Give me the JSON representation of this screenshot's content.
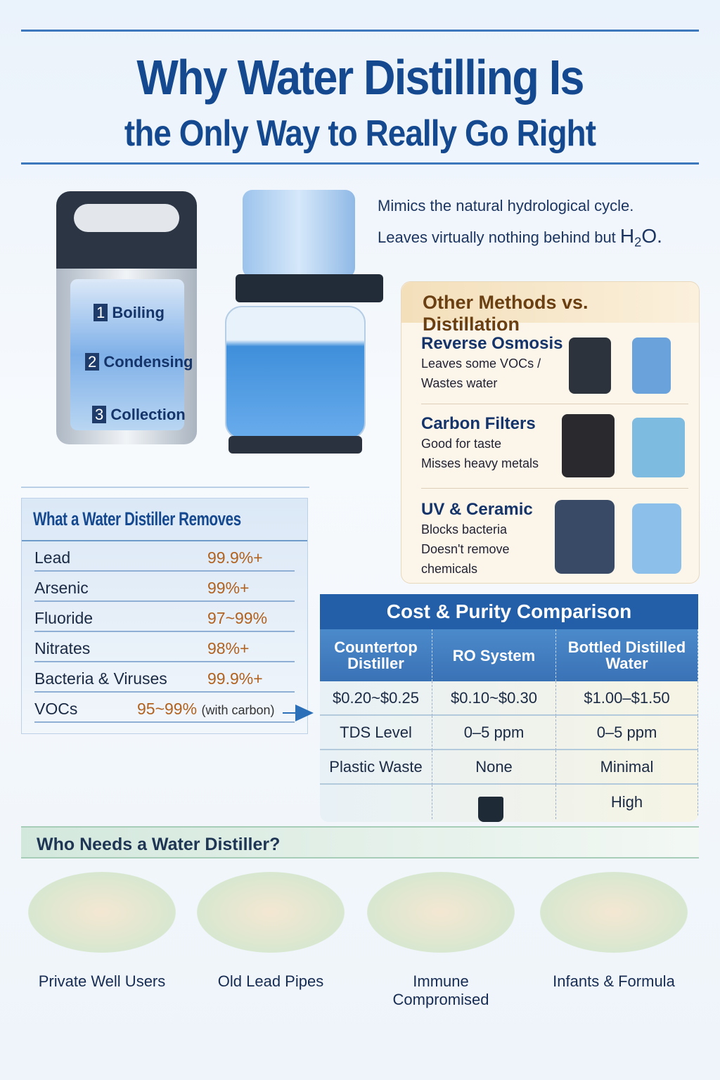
{
  "title": {
    "line1": "Why Water Distilling Is",
    "line2": "the Only Way to Really Go Right"
  },
  "intro": {
    "line1": "Mimics the natural hydrological cycle.",
    "line2_prefix": "Leaves virtually nothing behind but ",
    "formula": "H",
    "sub": "2",
    "formula_end": "O."
  },
  "distiller_steps": [
    {
      "num": "1",
      "label": "Boiling"
    },
    {
      "num": "2",
      "label": "Condensing"
    },
    {
      "num": "3",
      "label": "Collection"
    }
  ],
  "other_methods": {
    "title": "Other Methods vs. Distillation",
    "items": [
      {
        "name": "Reverse Osmosis",
        "lines": [
          "Leaves some VOCs /",
          "Wastes water"
        ]
      },
      {
        "name": "Carbon Filters",
        "lines": [
          "Good for taste",
          "Misses heavy metals"
        ]
      },
      {
        "name": "UV & Ceramic",
        "lines": [
          "Blocks bacteria",
          "Doesn't remove",
          "chemicals"
        ]
      }
    ]
  },
  "removes": {
    "title": "What a Water Distiller Removes",
    "rows": [
      {
        "name": "Lead",
        "value": "99.9%+",
        "note": ""
      },
      {
        "name": "Arsenic",
        "value": "99%+",
        "note": ""
      },
      {
        "name": "Fluoride",
        "value": "97~99%",
        "note": ""
      },
      {
        "name": "Nitrates",
        "value": "98%+",
        "note": ""
      },
      {
        "name": "Bacteria & Viruses",
        "value": "99.9%+",
        "note": ""
      },
      {
        "name": "VOCs",
        "value": "95~99%",
        "note": "(with carbon)"
      }
    ]
  },
  "cost": {
    "title": "Cost & Purity Comparison",
    "headers": [
      "Countertop Distiller",
      "RO System",
      "Bottled Distilled Water"
    ],
    "rows": [
      [
        "$0.20~$0.25",
        "$0.10~$0.30",
        "$1.00–$1.50"
      ],
      [
        "TDS Level",
        "0–5 ppm",
        "0–5 ppm"
      ],
      [
        "Plastic Waste",
        "None",
        "Minimal"
      ],
      [
        "",
        "",
        "High"
      ]
    ]
  },
  "who": {
    "title": "Who Needs a Water Distiller?",
    "items": [
      {
        "label": "Private Well Users",
        "icon": "well-icon"
      },
      {
        "label": "Old Lead Pipes",
        "icon": "pipes-icon"
      },
      {
        "label": "Immune Compromised",
        "icon": "shield-icon"
      },
      {
        "label": "Infants & Formula",
        "icon": "baby-icon"
      }
    ]
  },
  "colors": {
    "primary": "#14488f",
    "accent": "#b1621f",
    "table_header": "#235ea8"
  }
}
